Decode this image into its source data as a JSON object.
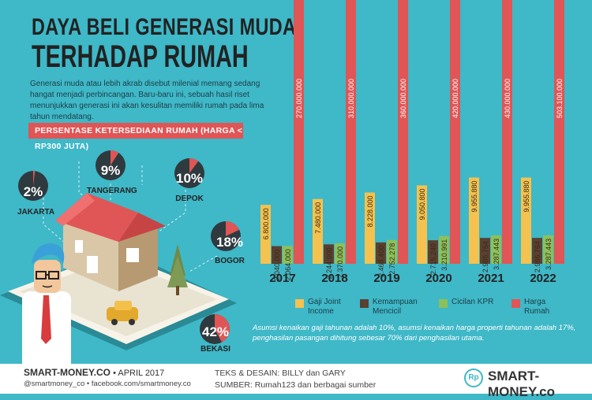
{
  "header": {
    "title_line1": "DAYA BELI GENERASI MUDA",
    "title_line2": "TERHADAP RUMAH",
    "intro": "Generasi muda atau lebih akrab disebut milenial memang sedang hangat menjadi perbincangan. Baru-baru ini, sebuah hasil riset menunjukkan generasi ini akan kesulitan memiliki rumah pada lima tahun mendatang.",
    "banner": "PERSENTASE KETERSEDIAAN RUMAH (HARGA < RP300 JUTA)"
  },
  "availability": [
    {
      "pct": "2%",
      "city": "JAKARTA",
      "value": 2
    },
    {
      "pct": "9%",
      "city": "TANGERANG",
      "value": 9
    },
    {
      "pct": "10%",
      "city": "DEPOK",
      "value": 10
    },
    {
      "pct": "18%",
      "city": "BOGOR",
      "value": 18
    },
    {
      "pct": "42%",
      "city": "BEKASI",
      "value": 42
    }
  ],
  "chart_data": {
    "type": "bar",
    "categories": [
      "2017",
      "2018",
      "2019",
      "2020",
      "2021",
      "2022"
    ],
    "series": [
      {
        "name": "Gaji Joint Income",
        "values": [
          6800000,
          7480000,
          8228000,
          9050800,
          9955880,
          9955880
        ],
        "labels": [
          "6.800.000",
          "7.480.000",
          "8.228.000",
          "9.050.800",
          "9.955.880",
          "9.955.880"
        ],
        "color": "#f5c24f"
      },
      {
        "name": "Kemampuan Mencicil",
        "values": [
          2040000,
          2244000,
          2468400,
          2715240,
          2986764,
          2986764
        ],
        "labels": [
          "2.040.000",
          "2.244.000",
          "2.468.400",
          "2.715.240",
          "2.986.764",
          "2.986.764"
        ],
        "color": "#5a4030"
      },
      {
        "name": "Cicilan KPR",
        "values": [
          2064000,
          2370000,
          2752278,
          3210991,
          3287443,
          3287443
        ],
        "labels": [
          "2.064.000",
          "2.370.000",
          "2.752.278",
          "3.210.991",
          "3.287.443",
          "3.287.443"
        ],
        "color": "#8cc05a"
      },
      {
        "name": "Harga Rumah",
        "values": [
          270000000,
          310000000,
          360000000,
          420000000,
          430000000,
          503100000
        ],
        "labels": [
          "270.000.000",
          "310.000.000",
          "360.000.000",
          "420.000.000",
          "430.000.000",
          "503.100.000"
        ],
        "color": "#e05555"
      }
    ]
  },
  "legend": [
    {
      "line1": "Gaji Joint",
      "line2": "Income",
      "color": "#f5c24f"
    },
    {
      "line1": "Kemampuan",
      "line2": "Mencicil",
      "color": "#5a4030"
    },
    {
      "line1": "Cicilan KPR",
      "line2": "",
      "color": "#8cc05a"
    },
    {
      "line1": "Harga",
      "line2": "Rumah",
      "color": "#e05555"
    }
  ],
  "note": "Asumsi kenaikan gaji tahunan adalah 10%, asumsi kenaikan harga properti tahunan adalah 17%, penghasilan pasangan dihitung sebesar 70% dari penghasilan utama.",
  "footer": {
    "site": "SMART-MONEY.CO",
    "date": "• APRIL 2017",
    "social": "@smartmoney_co • facebook.com/smartmoney.co",
    "credits": "TEKS & DESAIN: BILLY dan GARY",
    "source": "SUMBER: Rumah123 dan berbagai sumber",
    "brand": "SMART-MONEY.co",
    "brand_icon": "Rp"
  }
}
